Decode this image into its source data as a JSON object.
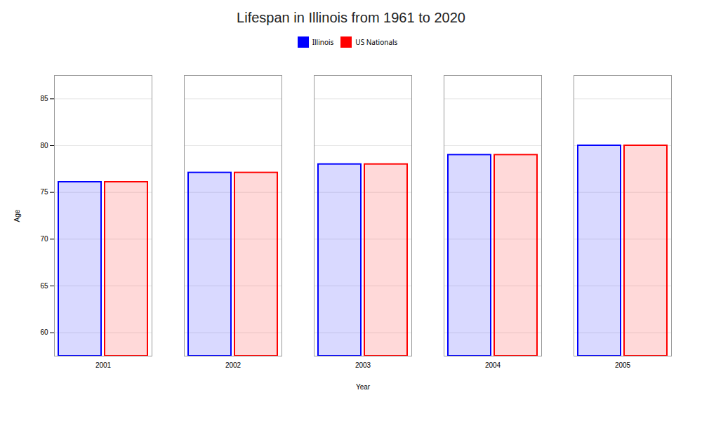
{
  "chart_data": {
    "type": "bar",
    "title": "Lifespan in Illinois from 1961 to 2020",
    "xlabel": "Year",
    "ylabel": "Age",
    "categories": [
      "2001",
      "2002",
      "2003",
      "2004",
      "2005"
    ],
    "series": [
      {
        "name": "Illinois",
        "color": "#0000ff",
        "values": [
          76.1,
          77.1,
          78.0,
          79.0,
          80.0
        ]
      },
      {
        "name": "US Nationals",
        "color": "#ff0000",
        "values": [
          76.1,
          77.1,
          78.0,
          79.0,
          80.0
        ]
      }
    ],
    "ylim": [
      57.5,
      87.5
    ],
    "yticks": [
      60,
      65,
      70,
      75,
      80,
      85
    ],
    "grid": true,
    "legend": "top"
  }
}
